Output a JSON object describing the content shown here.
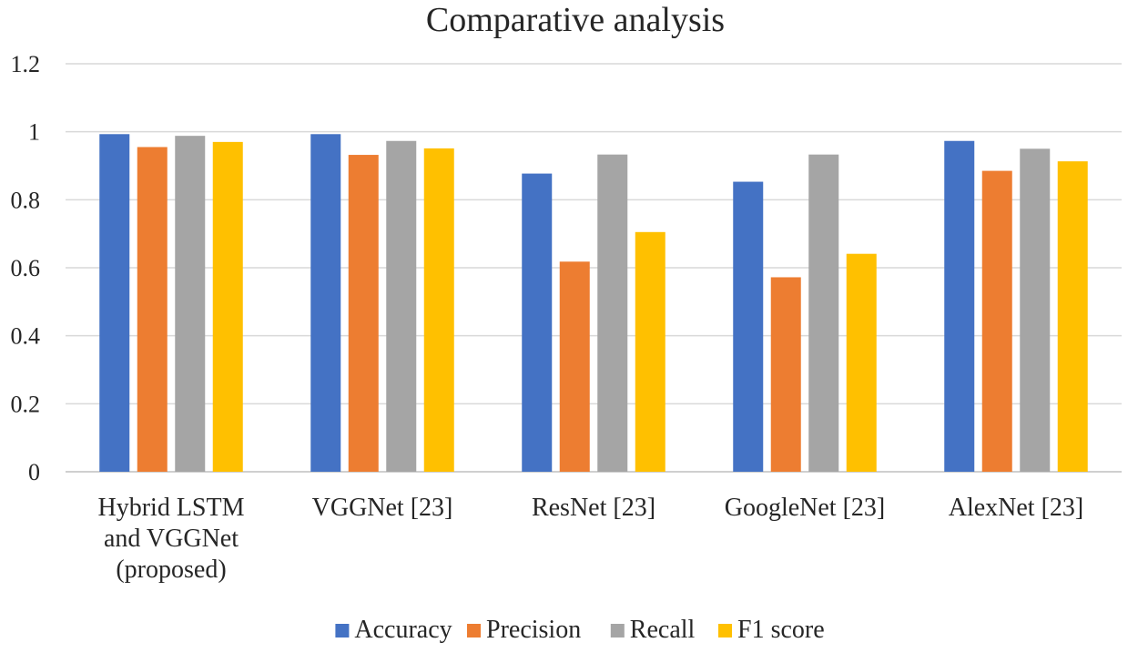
{
  "chart_data": {
    "type": "bar",
    "title": "Comparative analysis",
    "xlabel": "",
    "ylabel": "",
    "ylim": [
      0,
      1.2
    ],
    "yticks": [
      "0",
      "0.2",
      "0.4",
      "0.6",
      "0.8",
      "1",
      "1.2"
    ],
    "ytick_values": [
      0,
      0.2,
      0.4,
      0.6,
      0.8,
      1.0,
      1.2
    ],
    "grid": true,
    "legend_position": "bottom",
    "categories": [
      [
        "Hybrid LSTM",
        "and VGGNet",
        "(proposed)"
      ],
      [
        "VGGNet  [23]"
      ],
      [
        "ResNet  [23]"
      ],
      [
        "GoogleNet  [23]"
      ],
      [
        "AlexNet  [23]"
      ]
    ],
    "series": [
      {
        "name": "Accuracy",
        "color": "#4472c4",
        "values": [
          0.993,
          0.993,
          0.877,
          0.853,
          0.973
        ]
      },
      {
        "name": "Precision",
        "color": "#ed7d31",
        "values": [
          0.955,
          0.932,
          0.618,
          0.572,
          0.885
        ]
      },
      {
        "name": "Recall",
        "color": "#a5a5a5",
        "values": [
          0.988,
          0.973,
          0.933,
          0.933,
          0.95
        ]
      },
      {
        "name": "F1 score",
        "color": "#ffc000",
        "values": [
          0.97,
          0.951,
          0.705,
          0.641,
          0.913
        ]
      }
    ]
  }
}
